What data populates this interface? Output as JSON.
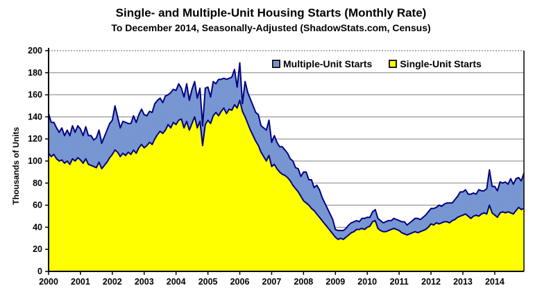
{
  "header": {
    "title": "Single- and Multiple-Unit Housing Starts (Monthly Rate)",
    "subtitle": "To December 2014, Seasonally-Adjusted (ShadowStats.com, Census)"
  },
  "legend": {
    "position": "top-inside",
    "multiple_label": "Multiple-Unit Starts",
    "single_label": "Single-Unit Starts"
  },
  "chart_data": {
    "type": "area",
    "stacked": true,
    "title": "Single- and Multiple-Unit Housing Starts (Monthly Rate)",
    "subtitle": "To December 2014, Seasonally-Adjusted (ShadowStats.com, Census)",
    "xlabel": "",
    "ylabel": "Thousands of Units",
    "ylim": [
      0,
      200
    ],
    "y_ticks": [
      0,
      20,
      40,
      60,
      80,
      100,
      120,
      140,
      160,
      180,
      200
    ],
    "x_tick_labels": [
      "2000",
      "2001",
      "2002",
      "2003",
      "2004",
      "2005",
      "2006",
      "2007",
      "2008",
      "2009",
      "2010",
      "2011",
      "2012",
      "2013",
      "2014"
    ],
    "x_start": "2000-01",
    "x_end": "2014-12",
    "frequency": "monthly",
    "grid": "horizontal",
    "colors": {
      "single_fill": "#FFFF00",
      "multi_fill_light": "#9FBAE8",
      "multi_fill_dark": "#4E72BC",
      "boundary_line": "#000080",
      "gridline": "#808080",
      "axis": "#000000"
    },
    "series": [
      {
        "name": "Single-Unit Starts",
        "color": "#FFFF00",
        "values": [
          107,
          104,
          106,
          102,
          100,
          101,
          98,
          100,
          97,
          102,
          100,
          103,
          101,
          98,
          102,
          97,
          96,
          95,
          94,
          99,
          93,
          96,
          99,
          103,
          106,
          110,
          108,
          104,
          107,
          105,
          108,
          106,
          110,
          107,
          112,
          115,
          112,
          114,
          117,
          115,
          120,
          124,
          127,
          125,
          128,
          133,
          130,
          135,
          133,
          137,
          138,
          130,
          136,
          128,
          134,
          140,
          130,
          136,
          114,
          133,
          137,
          134,
          141,
          144,
          141,
          145,
          148,
          143,
          147,
          146,
          151,
          148,
          155,
          145,
          140,
          134,
          128,
          123,
          118,
          114,
          108,
          104,
          100,
          105,
          95,
          97,
          93,
          90,
          88,
          87,
          85,
          82,
          78,
          75,
          72,
          68,
          64,
          62,
          60,
          57,
          55,
          52,
          49,
          46,
          43,
          40,
          37,
          34,
          31,
          29,
          30,
          29,
          31,
          33,
          35,
          36,
          38,
          38,
          39,
          38,
          40,
          41,
          45,
          46,
          39,
          37,
          36,
          36,
          37,
          38,
          39,
          38,
          37,
          35,
          34,
          33,
          34,
          35,
          36,
          35,
          36,
          37,
          38,
          40,
          43,
          42,
          44,
          43,
          44,
          45,
          45,
          44,
          46,
          47,
          49,
          50,
          51,
          52,
          50,
          48,
          50,
          51,
          50,
          52,
          53,
          52,
          60,
          53,
          51,
          49,
          53,
          54,
          53,
          54,
          53,
          52,
          55,
          58,
          56,
          57
        ]
      },
      {
        "name": "Multiple-Unit Starts",
        "color": "#6E90D2",
        "values": [
          36,
          31,
          29,
          28,
          26,
          29,
          25,
          28,
          26,
          30,
          26,
          29,
          28,
          25,
          29,
          26,
          27,
          24,
          27,
          29,
          23,
          26,
          29,
          31,
          31,
          40,
          32,
          26,
          29,
          30,
          26,
          28,
          31,
          28,
          30,
          32,
          30,
          27,
          28,
          29,
          32,
          31,
          30,
          28,
          31,
          27,
          32,
          30,
          31,
          33,
          28,
          28,
          34,
          27,
          31,
          32,
          27,
          30,
          18,
          33,
          30,
          24,
          31,
          26,
          33,
          29,
          27,
          31,
          28,
          30,
          32,
          19,
          34,
          7,
          32,
          28,
          28,
          27,
          26,
          28,
          24,
          26,
          28,
          32,
          22,
          26,
          24,
          23,
          25,
          23,
          22,
          20,
          22,
          19,
          21,
          18,
          26,
          28,
          23,
          26,
          21,
          26,
          25,
          21,
          19,
          17,
          15,
          13,
          7,
          8,
          7,
          8,
          8,
          9,
          9,
          9,
          8,
          7,
          9,
          10,
          9,
          8,
          9,
          10,
          9,
          9,
          8,
          9,
          9,
          8,
          9,
          9,
          9,
          10,
          11,
          9,
          10,
          11,
          12,
          13,
          11,
          12,
          13,
          14,
          14,
          15,
          14,
          17,
          15,
          16,
          17,
          18,
          16,
          18,
          19,
          22,
          21,
          22,
          20,
          22,
          21,
          19,
          24,
          21,
          20,
          23,
          32,
          24,
          26,
          24,
          28,
          26,
          28,
          25,
          31,
          27,
          29,
          27,
          26,
          32
        ]
      }
    ]
  }
}
